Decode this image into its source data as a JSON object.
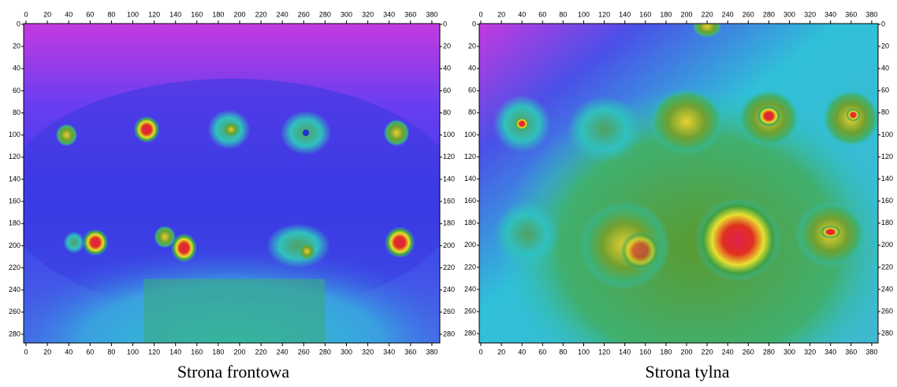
{
  "panels": [
    {
      "caption": "Strona frontowa",
      "xticks": [
        0,
        20,
        40,
        60,
        80,
        100,
        120,
        140,
        160,
        180,
        200,
        220,
        240,
        260,
        280,
        300,
        320,
        340,
        360,
        380
      ],
      "yticks": [
        0,
        20,
        40,
        60,
        80,
        100,
        120,
        140,
        160,
        180,
        200,
        220,
        240,
        260,
        280
      ]
    },
    {
      "caption": "Strona tylna",
      "xticks": [
        0,
        20,
        40,
        60,
        80,
        100,
        120,
        140,
        160,
        180,
        200,
        220,
        240,
        260,
        280,
        300,
        320,
        340,
        360,
        380
      ],
      "yticks": [
        0,
        20,
        40,
        60,
        80,
        100,
        120,
        140,
        160,
        180,
        200,
        220,
        240,
        260,
        280
      ]
    }
  ]
}
